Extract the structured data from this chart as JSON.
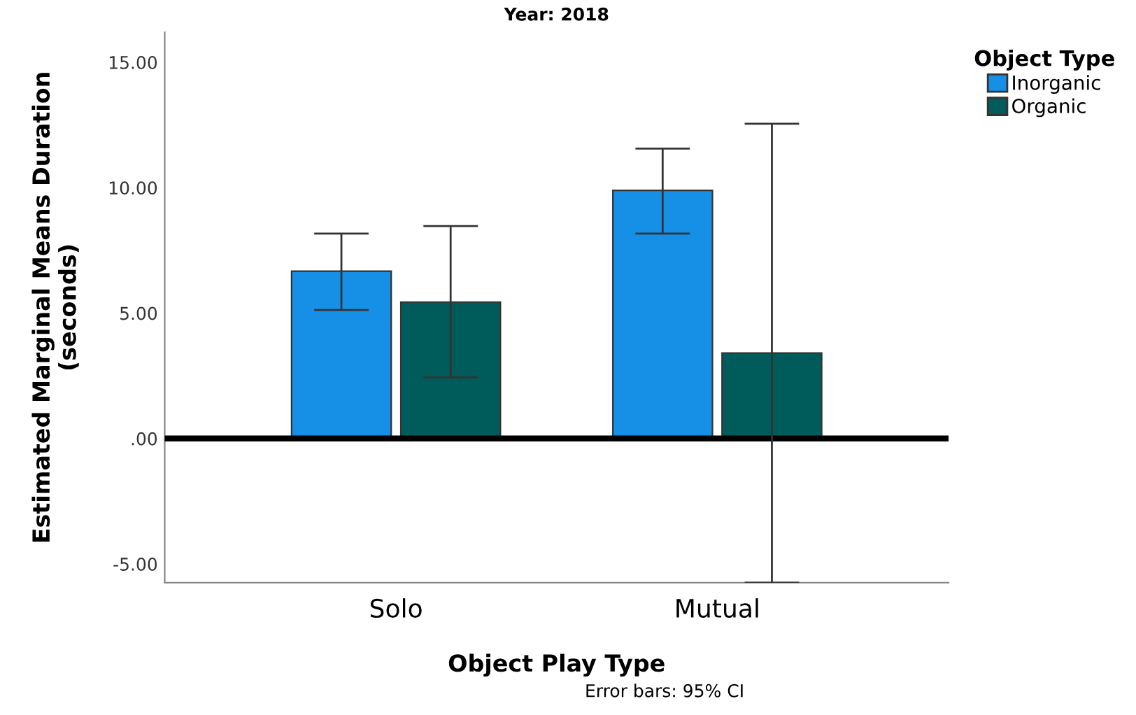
{
  "chart_data": {
    "type": "bar",
    "title": "Year: 2018",
    "xlabel": "Object Play Type",
    "ylabel": "Estimated Marginal Means Duration\n(seconds)",
    "legend_title": "Object Type",
    "legend": "top right",
    "categories": [
      "Solo",
      "Mutual"
    ],
    "series": [
      {
        "name": "Inorganic",
        "color": "#1590e6",
        "values": [
          6.67,
          9.89
        ],
        "errors": [
          [
            5.12,
            8.17
          ],
          [
            8.17,
            11.56
          ]
        ]
      },
      {
        "name": "Organic",
        "color": "#005c5b",
        "values": [
          5.44,
          3.41
        ],
        "errors": [
          [
            2.44,
            8.47
          ],
          [
            -5.75,
            12.55
          ]
        ]
      }
    ],
    "ylim": [
      -5.75,
      16.2
    ],
    "yticks": [
      {
        "value": -5,
        "label": "-5.00"
      },
      {
        "value": 0,
        "label": ".00"
      },
      {
        "value": 5,
        "label": "5.00"
      },
      {
        "value": 10,
        "label": "10.00"
      },
      {
        "value": 15,
        "label": "15.00"
      }
    ],
    "ref_lines": [
      {
        "axis": "y",
        "value": 0,
        "color": "#000000"
      }
    ],
    "grid": false,
    "annotations": [
      "Error bars: 95% CI"
    ]
  }
}
